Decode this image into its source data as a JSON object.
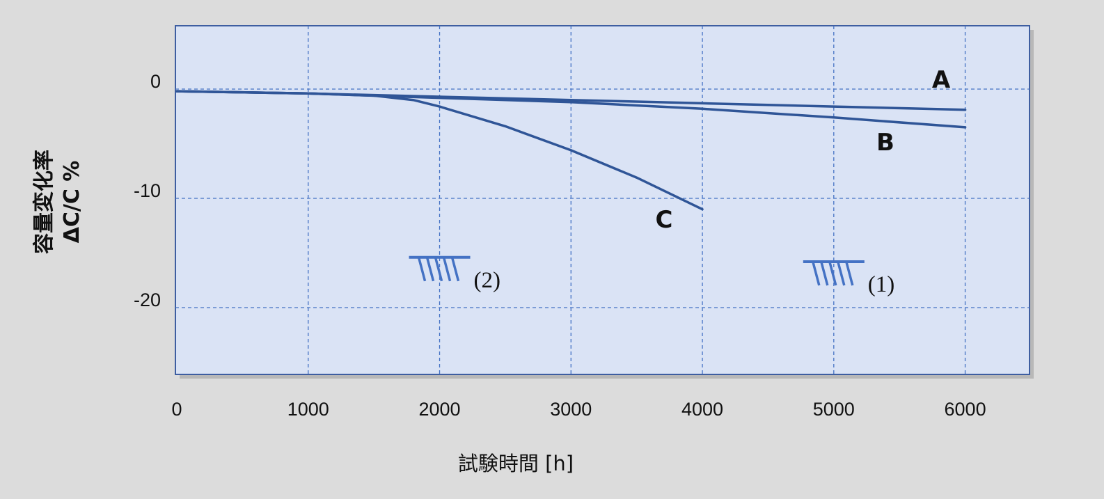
{
  "chart_data": {
    "type": "line",
    "xlabel": "試験時間 [h]",
    "ylabel_line1": "容量変化率",
    "ylabel_line2": "ΔC/C %",
    "xlim": [
      0,
      6500
    ],
    "ylim": [
      -26,
      6
    ],
    "x_ticks": [
      0,
      1000,
      2000,
      3000,
      4000,
      5000,
      6000
    ],
    "x_tick_labels": [
      "0",
      "1000",
      "2000",
      "3000",
      "4000",
      "5000",
      "6000"
    ],
    "y_ticks": [
      0,
      -10,
      -20
    ],
    "y_tick_labels": [
      "0",
      "-10",
      "-20"
    ],
    "grid": true,
    "colors": {
      "plot_bg": "#dae3f5",
      "frame": "#3e5ea1",
      "line": "#2f5597",
      "grid": "#4472c4",
      "marker": "#4472c4"
    },
    "series": [
      {
        "name": "A",
        "x": [
          0,
          1000,
          2000,
          3000,
          4000,
          5000,
          6000
        ],
        "y": [
          -0.2,
          -0.4,
          -0.7,
          -1.0,
          -1.3,
          -1.6,
          -1.9
        ]
      },
      {
        "name": "B",
        "x": [
          0,
          1000,
          2000,
          3000,
          4000,
          5000,
          6000
        ],
        "y": [
          -0.2,
          -0.4,
          -0.8,
          -1.2,
          -1.8,
          -2.6,
          -3.5
        ]
      },
      {
        "name": "C",
        "x": [
          0,
          1000,
          1500,
          1800,
          2000,
          2500,
          3000,
          3500,
          4000
        ],
        "y": [
          -0.2,
          -0.4,
          -0.6,
          -1.0,
          -1.6,
          -3.4,
          -5.6,
          -8.1,
          -11.0
        ]
      }
    ],
    "annotations": [
      {
        "label": "(2)",
        "x": 2000,
        "y": -15.4
      },
      {
        "label": "(1)",
        "x": 5000,
        "y": -15.8
      }
    ]
  }
}
